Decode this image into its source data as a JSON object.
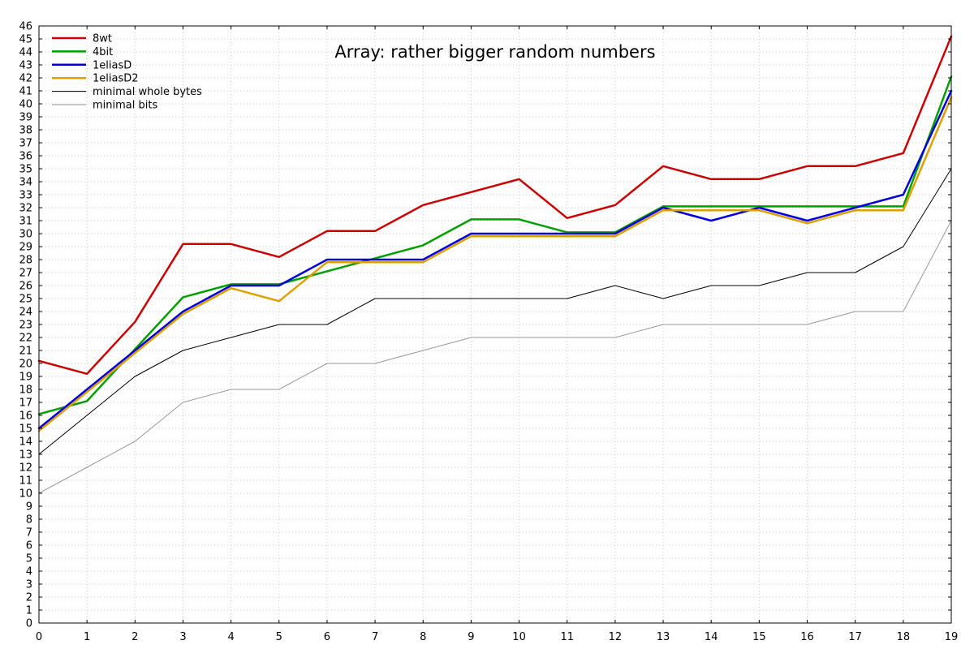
{
  "chart_data": {
    "type": "line",
    "title": "Array: rather bigger random numbers",
    "xlabel": "",
    "ylabel": "",
    "xlim": [
      0,
      19
    ],
    "ylim": [
      0,
      46
    ],
    "x": [
      0,
      1,
      2,
      3,
      4,
      5,
      6,
      7,
      8,
      9,
      10,
      11,
      12,
      13,
      14,
      15,
      16,
      17,
      18,
      19
    ],
    "x_ticks": [
      "0",
      "1",
      "2",
      "3",
      "4",
      "5",
      "6",
      "7",
      "8",
      "9",
      "10",
      "11",
      "12",
      "13",
      "14",
      "15",
      "16",
      "17",
      "18",
      "19"
    ],
    "y_ticks": [
      "0",
      "1",
      "2",
      "3",
      "4",
      "5",
      "6",
      "7",
      "8",
      "9",
      "10",
      "11",
      "12",
      "13",
      "14",
      "15",
      "16",
      "17",
      "18",
      "19",
      "20",
      "21",
      "22",
      "23",
      "24",
      "25",
      "26",
      "27",
      "28",
      "29",
      "30",
      "31",
      "32",
      "33",
      "34",
      "35",
      "36",
      "37",
      "38",
      "39",
      "40",
      "41",
      "42",
      "43",
      "44",
      "45",
      "46"
    ],
    "grid": true,
    "legend_position": "top-left",
    "series": [
      {
        "name": "8wt",
        "color": "#cc0000",
        "width": "thick",
        "values": [
          20.2,
          19.2,
          23.2,
          29.2,
          29.2,
          28.2,
          30.2,
          30.2,
          32.2,
          33.2,
          34.2,
          31.2,
          32.2,
          35.2,
          34.2,
          34.2,
          35.2,
          35.2,
          36.2,
          45.2
        ]
      },
      {
        "name": "4bit",
        "color": "#00a000",
        "width": "thick",
        "values": [
          16.1,
          17.1,
          21.1,
          25.1,
          26.1,
          26.1,
          27.1,
          28.1,
          29.1,
          31.1,
          31.1,
          30.1,
          30.1,
          32.1,
          32.1,
          32.1,
          32.1,
          32.1,
          32.1,
          42.1
        ]
      },
      {
        "name": "1eliasD",
        "color": "#0000dd",
        "width": "thick",
        "values": [
          15.0,
          18.0,
          21.0,
          24.0,
          26.0,
          26.0,
          28.0,
          28.0,
          28.0,
          30.0,
          30.0,
          30.0,
          30.0,
          32.0,
          31.0,
          32.0,
          31.0,
          32.0,
          33.0,
          41.0
        ]
      },
      {
        "name": "1eliasD2",
        "color": "#dda000",
        "width": "thick",
        "values": [
          14.8,
          17.8,
          20.8,
          23.8,
          25.8,
          24.8,
          27.8,
          27.8,
          27.8,
          29.8,
          29.8,
          29.8,
          29.8,
          31.8,
          31.8,
          31.8,
          30.8,
          31.8,
          31.8,
          40.5
        ]
      },
      {
        "name": "minimal whole bytes",
        "color": "#000000",
        "width": "thin",
        "values": [
          13,
          16,
          19,
          21,
          22,
          23,
          23,
          25,
          25,
          25,
          25,
          25,
          26,
          25,
          26,
          26,
          27,
          27,
          29,
          35
        ]
      },
      {
        "name": "minimal bits",
        "color": "#999999",
        "width": "thin",
        "values": [
          10,
          12,
          14,
          17,
          18,
          18,
          20,
          20,
          21,
          22,
          22,
          22,
          22,
          23,
          23,
          23,
          23,
          24,
          24,
          31
        ]
      }
    ]
  }
}
